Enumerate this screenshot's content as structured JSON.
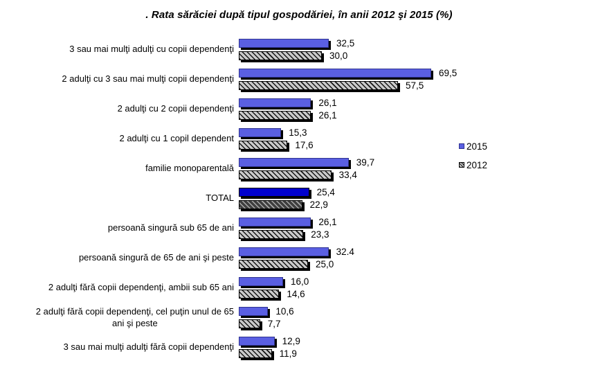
{
  "title": ". Rata sărăciei după tipul gospodăriei, în anii 2012 şi 2015 (%)",
  "legend": {
    "items": [
      {
        "label": "2015"
      },
      {
        "label": "2012"
      }
    ]
  },
  "colors": {
    "bar_2015_fill": "#5a5fe2",
    "bar_2015_border": "#2f3390",
    "bar_2015_total_fill": "#0000cc",
    "bar_2015_total_border": "#000000",
    "bar_2012_bg": "#c9c9c9",
    "bar_2012_stroke": "#161616",
    "bar_2012_total_bg": "#3f3f3f",
    "bar_2012_total_stroke": "#aaaaaa",
    "shadow": "#000000",
    "text": "#000000",
    "background": "#ffffff"
  },
  "chart_data": {
    "type": "bar",
    "orientation": "horizontal",
    "title": "Rata sărăciei după tipul gospodăriei, în anii 2012 şi 2015 (%)",
    "categories": [
      "3 sau mai mulţi adulţi cu copii dependenţi",
      "2 adulţi cu 3 sau mai mulţi copii dependenţi",
      "2 adulţi cu 2 copii dependenţi",
      "2 adulţi cu 1 copil dependent",
      "familie monoparentală",
      "TOTAL",
      "persoană singură sub 65 de ani",
      "persoană singură de 65 de ani şi peste",
      "2 adulţi fără copii dependenţi, ambii sub 65 ani",
      "2 adulţi fără copii dependenţi, cel puţin unul de 65\nani şi peste",
      "3 sau mai mulţi adulţi fără copii dependenţi"
    ],
    "series": [
      {
        "name": "2015",
        "values": [
          32.5,
          69.5,
          26.1,
          15.3,
          39.7,
          25.4,
          26.1,
          32.4,
          16.0,
          10.6,
          12.9
        ],
        "labels": [
          "32,5",
          "69,5",
          "26,1",
          "15,3",
          "39,7",
          "25,4",
          "26,1",
          "32.4",
          "16,0",
          "10,6",
          "12,9"
        ]
      },
      {
        "name": "2012",
        "values": [
          30.0,
          57.5,
          26.1,
          17.6,
          33.4,
          22.9,
          23.3,
          25.0,
          14.6,
          7.7,
          11.9
        ],
        "labels": [
          "30,0",
          "57,5",
          "26,1",
          "17,6",
          "33,4",
          "22,9",
          "23,3",
          "25,0",
          "14,6",
          "7,7",
          "11,9"
        ]
      }
    ],
    "xlim": [
      0,
      72
    ],
    "grid": false,
    "legend_position": "right",
    "highlight_category": "TOTAL"
  }
}
